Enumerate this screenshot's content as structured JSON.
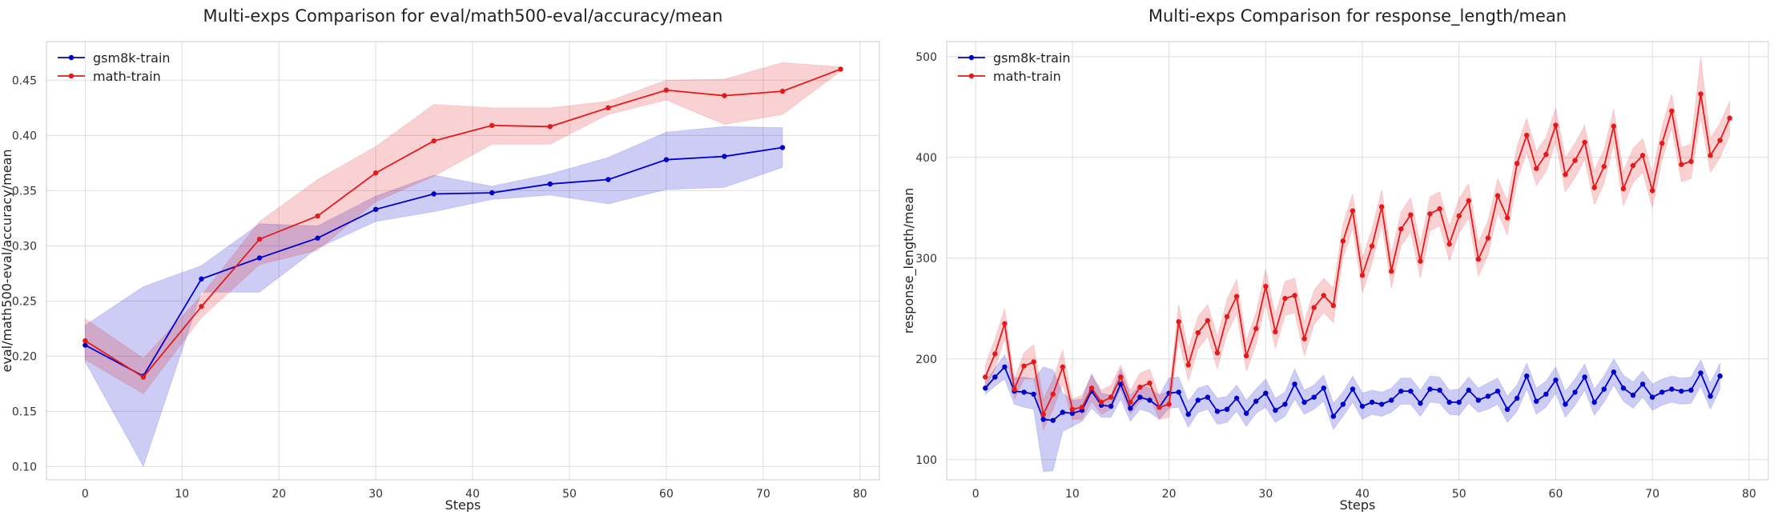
{
  "chart_data": [
    {
      "type": "line",
      "title": "Multi-exps Comparison for eval/math500-eval/accuracy/mean",
      "xlabel": "Steps",
      "ylabel": "eval/math500-eval/accuracy/mean",
      "xlim": [
        -4,
        82
      ],
      "ylim": [
        0.088,
        0.485
      ],
      "xticks": [
        0,
        10,
        20,
        30,
        40,
        50,
        60,
        70,
        80
      ],
      "yticks": [
        0.1,
        0.15,
        0.2,
        0.25,
        0.3,
        0.35,
        0.4,
        0.45
      ],
      "ytick_labels": [
        "0.10",
        "0.15",
        "0.20",
        "0.25",
        "0.30",
        "0.35",
        "0.40",
        "0.45"
      ],
      "grid": true,
      "legend_position": "top-left",
      "series": [
        {
          "name": "gsm8k-train",
          "color": "#0000cc",
          "x": [
            0,
            6,
            12,
            18,
            24,
            30,
            36,
            42,
            48,
            54,
            60,
            66,
            72
          ],
          "y": [
            0.21,
            0.182,
            0.27,
            0.289,
            0.307,
            0.333,
            0.347,
            0.348,
            0.356,
            0.36,
            0.378,
            0.381,
            0.389
          ],
          "y_low": [
            0.195,
            0.1,
            0.258,
            0.258,
            0.298,
            0.322,
            0.331,
            0.342,
            0.346,
            0.338,
            0.351,
            0.353,
            0.371
          ],
          "y_high": [
            0.228,
            0.263,
            0.282,
            0.32,
            0.318,
            0.345,
            0.364,
            0.354,
            0.365,
            0.38,
            0.403,
            0.408,
            0.407
          ]
        },
        {
          "name": "math-train",
          "color": "#e31a1c",
          "x": [
            0,
            6,
            12,
            18,
            24,
            30,
            36,
            42,
            48,
            54,
            60,
            66,
            72,
            78
          ],
          "y": [
            0.214,
            0.181,
            0.245,
            0.306,
            0.327,
            0.366,
            0.395,
            0.409,
            0.408,
            0.425,
            0.441,
            0.436,
            0.44,
            0.46
          ],
          "y_low": [
            0.197,
            0.166,
            0.235,
            0.283,
            0.296,
            0.34,
            0.363,
            0.392,
            0.392,
            0.419,
            0.432,
            0.41,
            0.419,
            0.458
          ],
          "y_high": [
            0.234,
            0.198,
            0.255,
            0.322,
            0.36,
            0.39,
            0.428,
            0.425,
            0.425,
            0.431,
            0.45,
            0.451,
            0.466,
            0.462
          ]
        }
      ]
    },
    {
      "type": "line",
      "title": "Multi-exps Comparison for response_length/mean",
      "xlabel": "Steps",
      "ylabel": "response_length/mean",
      "xlim": [
        -3,
        82
      ],
      "ylim": [
        80,
        515
      ],
      "xticks": [
        0,
        10,
        20,
        30,
        40,
        50,
        60,
        70,
        80
      ],
      "yticks": [
        100,
        200,
        300,
        400,
        500
      ],
      "ytick_labels": [
        "100",
        "200",
        "300",
        "400",
        "500"
      ],
      "grid": true,
      "legend_position": "top-left",
      "series": [
        {
          "name": "gsm8k-train",
          "color": "#0000cc",
          "x": [
            1,
            2,
            3,
            4,
            5,
            6,
            7,
            8,
            9,
            10,
            11,
            12,
            13,
            14,
            15,
            16,
            17,
            18,
            19,
            20,
            21,
            22,
            23,
            24,
            25,
            26,
            27,
            28,
            29,
            30,
            31,
            32,
            33,
            34,
            35,
            36,
            37,
            38,
            39,
            40,
            41,
            42,
            43,
            44,
            45,
            46,
            47,
            48,
            49,
            50,
            51,
            52,
            53,
            54,
            55,
            56,
            57,
            58,
            59,
            60,
            61,
            62,
            63,
            64,
            65,
            66,
            67,
            68,
            69,
            70,
            71,
            72,
            73,
            74,
            75,
            76,
            77
          ],
          "y": [
            171,
            182,
            192,
            168,
            167,
            165,
            140,
            139,
            147,
            146,
            149,
            168,
            154,
            153,
            175,
            151,
            162,
            159,
            152,
            166,
            167,
            145,
            159,
            162,
            148,
            150,
            161,
            146,
            158,
            166,
            149,
            155,
            175,
            157,
            162,
            171,
            143,
            155,
            170,
            153,
            157,
            155,
            159,
            168,
            168,
            156,
            170,
            169,
            157,
            157,
            169,
            159,
            163,
            168,
            150,
            161,
            183,
            158,
            165,
            179,
            155,
            167,
            182,
            157,
            170,
            187,
            171,
            164,
            175,
            162,
            167,
            170,
            168,
            169,
            186,
            163,
            183
          ],
          "y_low": [
            165,
            173,
            180,
            155,
            152,
            150,
            88,
            89,
            128,
            133,
            138,
            151,
            142,
            142,
            160,
            138,
            150,
            147,
            140,
            151,
            152,
            132,
            147,
            150,
            135,
            137,
            148,
            133,
            146,
            152,
            137,
            143,
            160,
            145,
            150,
            158,
            130,
            143,
            157,
            140,
            145,
            143,
            147,
            155,
            155,
            143,
            157,
            156,
            145,
            144,
            156,
            147,
            150,
            155,
            137,
            148,
            170,
            145,
            152,
            166,
            142,
            154,
            169,
            144,
            157,
            174,
            158,
            151,
            162,
            149,
            154,
            157,
            155,
            156,
            173,
            150,
            170
          ],
          "y_high": [
            177,
            191,
            204,
            181,
            182,
            180,
            192,
            189,
            166,
            159,
            160,
            185,
            166,
            164,
            190,
            164,
            174,
            171,
            164,
            181,
            182,
            158,
            171,
            174,
            161,
            163,
            174,
            159,
            170,
            180,
            161,
            167,
            190,
            169,
            174,
            184,
            156,
            167,
            183,
            166,
            169,
            167,
            171,
            181,
            181,
            169,
            183,
            182,
            169,
            170,
            182,
            171,
            176,
            181,
            163,
            174,
            196,
            171,
            178,
            192,
            168,
            180,
            195,
            170,
            183,
            200,
            184,
            177,
            188,
            175,
            180,
            183,
            181,
            182,
            199,
            176,
            196
          ]
        },
        {
          "name": "math-train",
          "color": "#e31a1c",
          "x": [
            1,
            2,
            3,
            4,
            5,
            6,
            7,
            8,
            9,
            10,
            11,
            12,
            13,
            14,
            15,
            16,
            17,
            18,
            19,
            20,
            21,
            22,
            23,
            24,
            25,
            26,
            27,
            28,
            29,
            30,
            31,
            32,
            33,
            34,
            35,
            36,
            37,
            38,
            39,
            40,
            41,
            42,
            43,
            44,
            45,
            46,
            47,
            48,
            49,
            50,
            51,
            52,
            53,
            54,
            55,
            56,
            57,
            58,
            59,
            60,
            61,
            62,
            63,
            64,
            65,
            66,
            67,
            68,
            69,
            70,
            71,
            72,
            73,
            74,
            75,
            76,
            77,
            78
          ],
          "y": [
            182,
            205,
            235,
            170,
            193,
            197,
            145,
            165,
            192,
            150,
            152,
            171,
            157,
            162,
            182,
            157,
            172,
            176,
            152,
            155,
            237,
            194,
            226,
            238,
            206,
            242,
            262,
            203,
            230,
            272,
            227,
            260,
            263,
            220,
            251,
            263,
            253,
            317,
            347,
            283,
            312,
            351,
            287,
            329,
            343,
            297,
            344,
            349,
            314,
            342,
            357,
            299,
            320,
            362,
            340,
            394,
            422,
            389,
            403,
            432,
            383,
            397,
            415,
            370,
            391,
            431,
            369,
            392,
            402,
            367,
            414,
            446,
            393,
            396,
            463,
            402,
            417,
            439
          ],
          "y_low": [
            170,
            190,
            220,
            160,
            180,
            180,
            130,
            150,
            175,
            140,
            140,
            158,
            145,
            150,
            170,
            145,
            158,
            162,
            140,
            142,
            220,
            178,
            210,
            222,
            190,
            225,
            245,
            188,
            214,
            255,
            210,
            243,
            246,
            203,
            234,
            246,
            236,
            300,
            330,
            266,
            295,
            334,
            270,
            312,
            326,
            280,
            327,
            332,
            297,
            325,
            340,
            282,
            303,
            345,
            323,
            377,
            405,
            372,
            386,
            415,
            366,
            380,
            398,
            353,
            374,
            414,
            352,
            375,
            385,
            350,
            397,
            429,
            376,
            379,
            440,
            385,
            400,
            422
          ],
          "y_high": [
            194,
            220,
            250,
            180,
            206,
            214,
            160,
            180,
            209,
            160,
            164,
            184,
            169,
            174,
            194,
            169,
            186,
            190,
            164,
            168,
            254,
            210,
            242,
            254,
            222,
            259,
            279,
            218,
            246,
            289,
            244,
            277,
            280,
            237,
            268,
            280,
            270,
            334,
            364,
            300,
            329,
            368,
            304,
            346,
            360,
            314,
            361,
            366,
            331,
            359,
            374,
            316,
            337,
            379,
            357,
            411,
            439,
            406,
            420,
            449,
            400,
            414,
            432,
            387,
            408,
            448,
            386,
            409,
            419,
            384,
            431,
            463,
            410,
            413,
            500,
            419,
            434,
            456
          ]
        }
      ]
    }
  ]
}
